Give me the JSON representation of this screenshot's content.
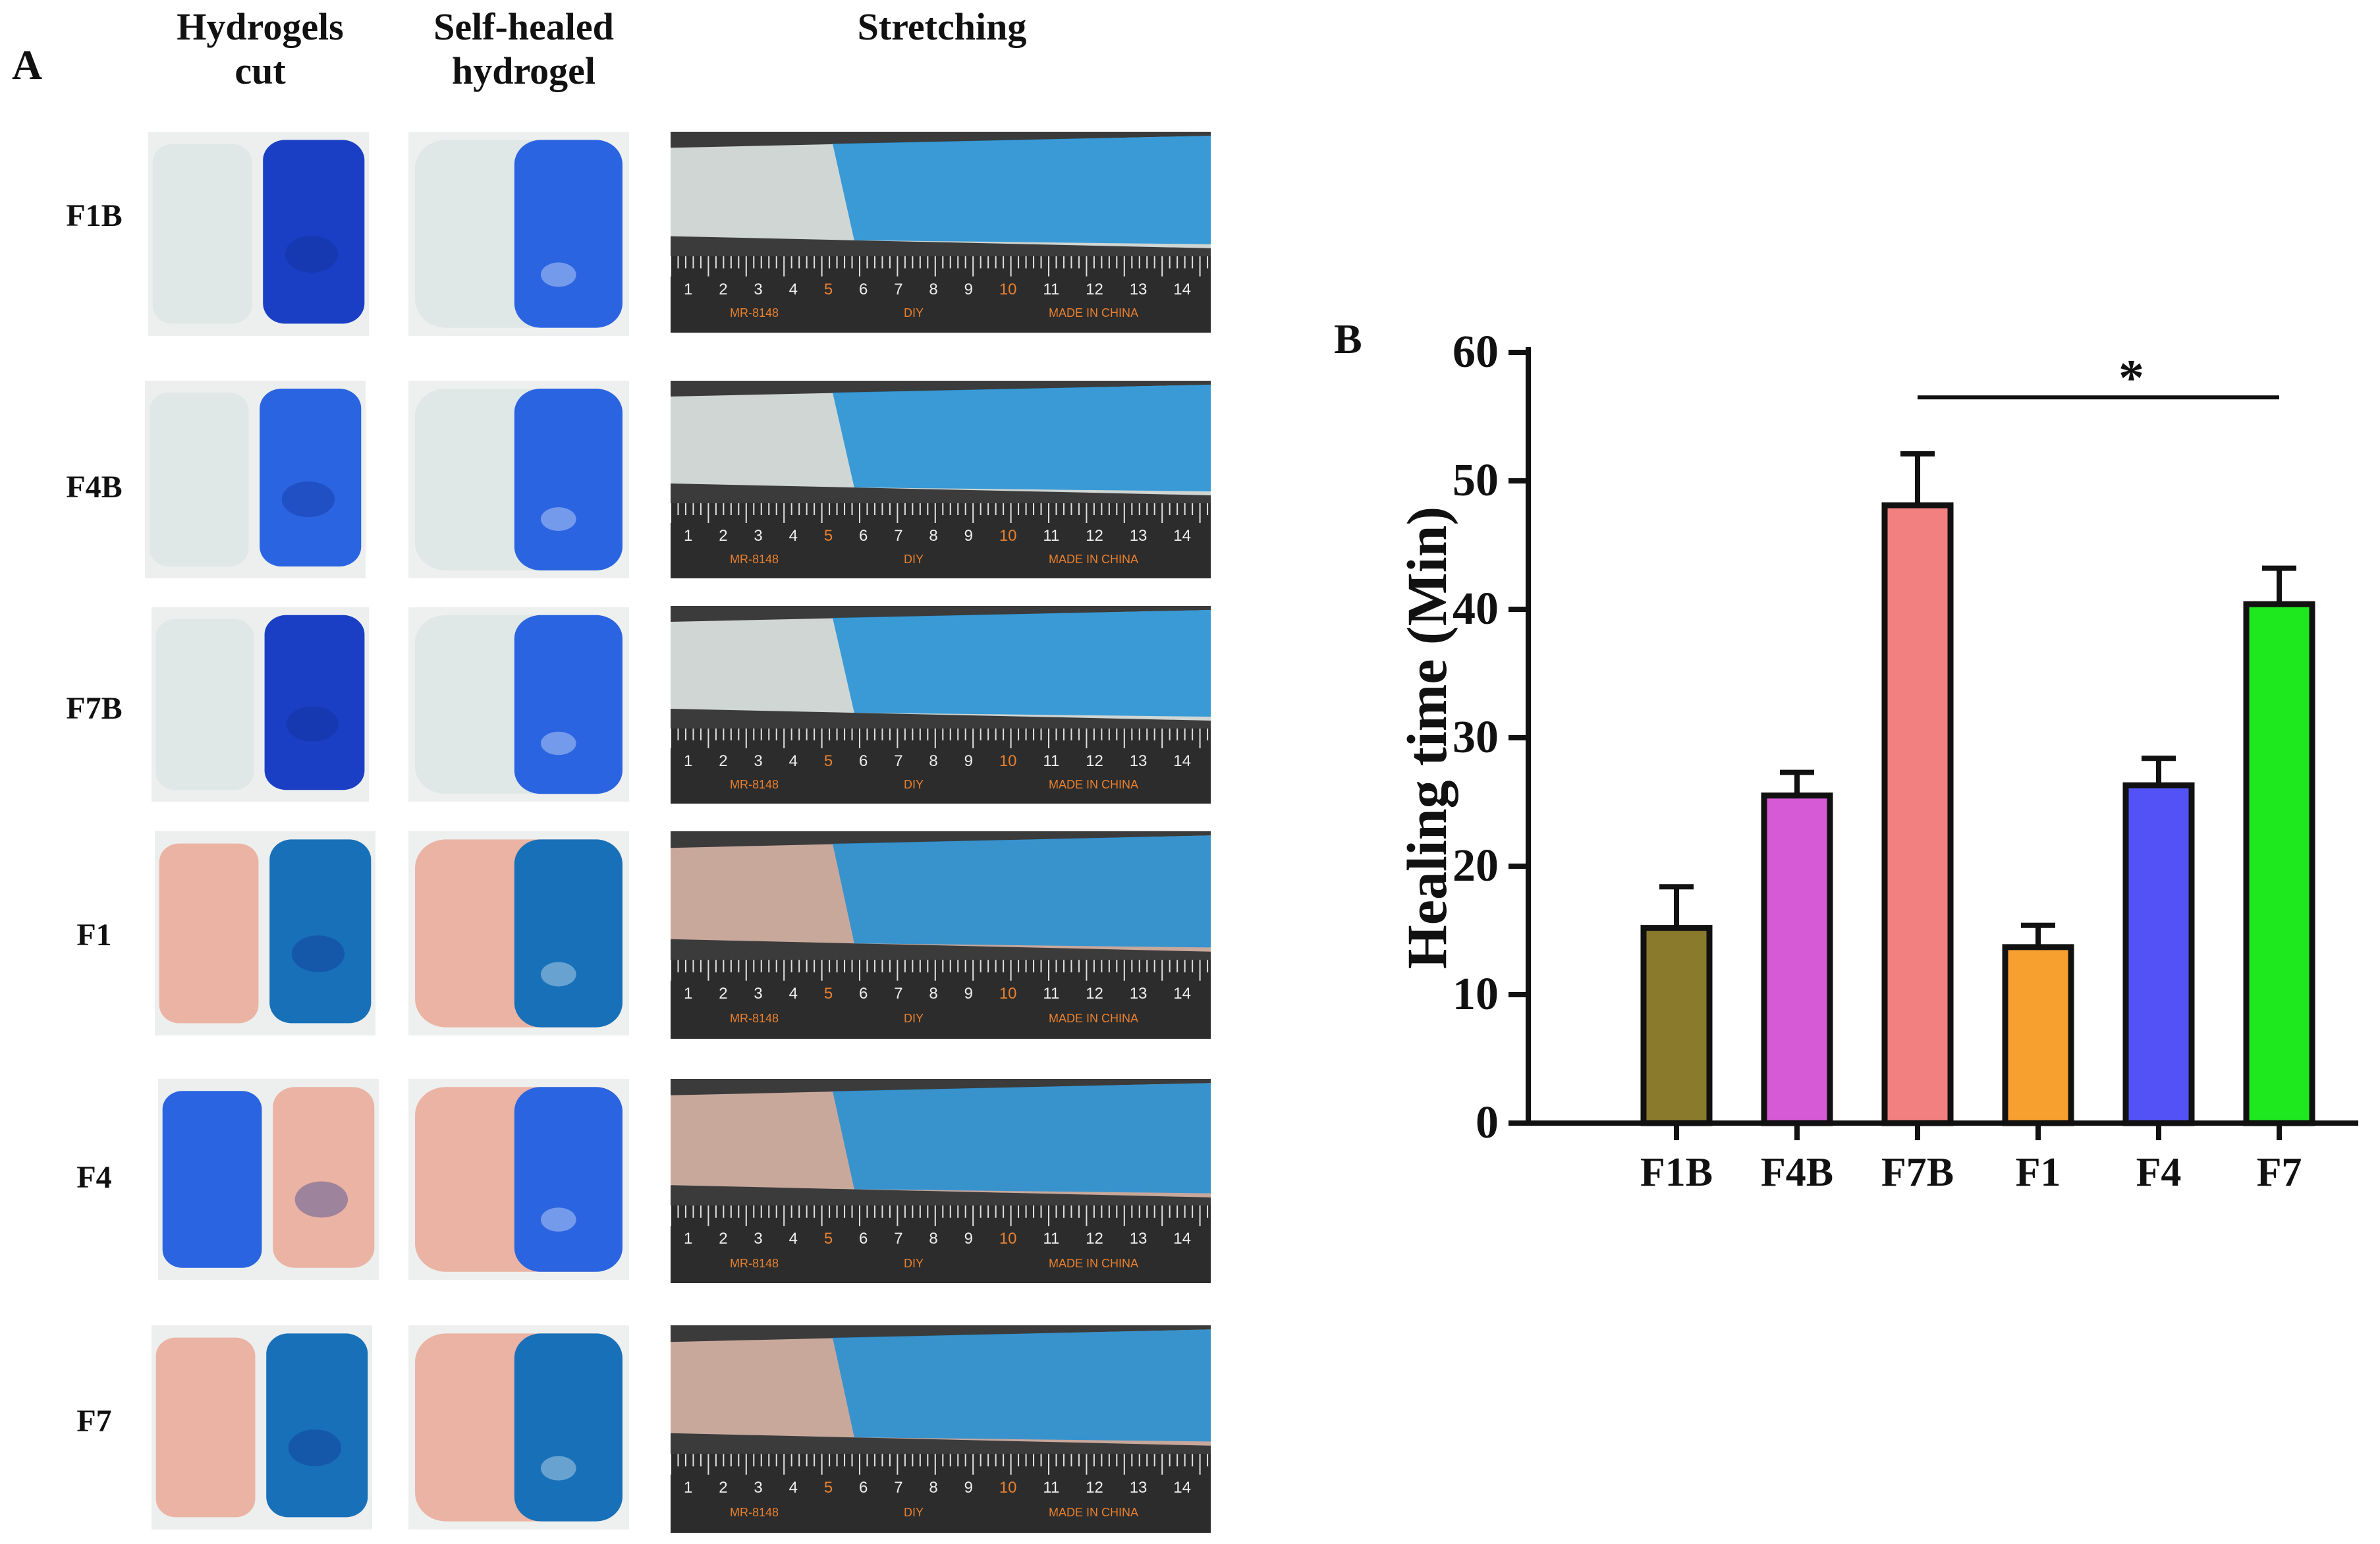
{
  "panel_a": {
    "label": "A",
    "column_headers": [
      {
        "line1": "Hydrogels",
        "line2": "cut"
      },
      {
        "line1": "Self-healed",
        "line2": "hydrogel"
      },
      {
        "line1": "Stretching",
        "line2": ""
      }
    ],
    "rows": [
      {
        "label": "F1B",
        "left_tone": "clear",
        "right_tone": "navy",
        "healed_tone": "clear-blue"
      },
      {
        "label": "F4B",
        "left_tone": "clear",
        "right_tone": "blue",
        "healed_tone": "clear-blue"
      },
      {
        "label": "F7B",
        "left_tone": "clear",
        "right_tone": "navy",
        "healed_tone": "clear-blue"
      },
      {
        "label": "F1",
        "left_tone": "pink",
        "right_tone": "teal",
        "healed_tone": "pink-teal"
      },
      {
        "label": "F4",
        "left_tone": "blue",
        "right_tone": "pink",
        "healed_tone": "pink-blue"
      },
      {
        "label": "F7",
        "left_tone": "pink",
        "right_tone": "teal",
        "healed_tone": "pink-teal"
      }
    ],
    "ruler_numbers": [
      "1",
      "2",
      "3",
      "4",
      "5",
      "6",
      "7",
      "8",
      "9",
      "10",
      "11",
      "12",
      "13",
      "14"
    ],
    "ruler_text": [
      "MR-8148",
      "DIY",
      "MADE IN CHINA"
    ]
  },
  "panel_b": {
    "label": "B"
  },
  "chart_data": {
    "type": "bar",
    "title": "",
    "xlabel": "",
    "ylabel": "Healing time (Min)",
    "ylim": [
      0,
      60
    ],
    "yticks": [
      "0",
      "10",
      "20",
      "30",
      "40",
      "50",
      "60"
    ],
    "categories": [
      "F1B",
      "F4B",
      "F7B",
      "F1",
      "F4",
      "F7"
    ],
    "values": [
      15.2,
      25.5,
      48.1,
      13.7,
      26.3,
      40.4
    ],
    "errors": [
      3.2,
      1.8,
      4.0,
      1.7,
      2.1,
      2.8
    ],
    "bar_colors": [
      "#8a7a2c",
      "#d65ad6",
      "#f28080",
      "#f7a030",
      "#5252f7",
      "#1ee81e"
    ],
    "significance": {
      "from": "F7B",
      "to": "F7",
      "label": "*",
      "y": 56.5
    }
  },
  "colors": {
    "clear": "#dfe8e6",
    "navy": "#1a3fc4",
    "blue": "#2a64e0",
    "teal": "#1870b8",
    "pink": "#eab3a3",
    "ruler_bg": "#2c2c2c",
    "ruler_text": "#e88030"
  }
}
